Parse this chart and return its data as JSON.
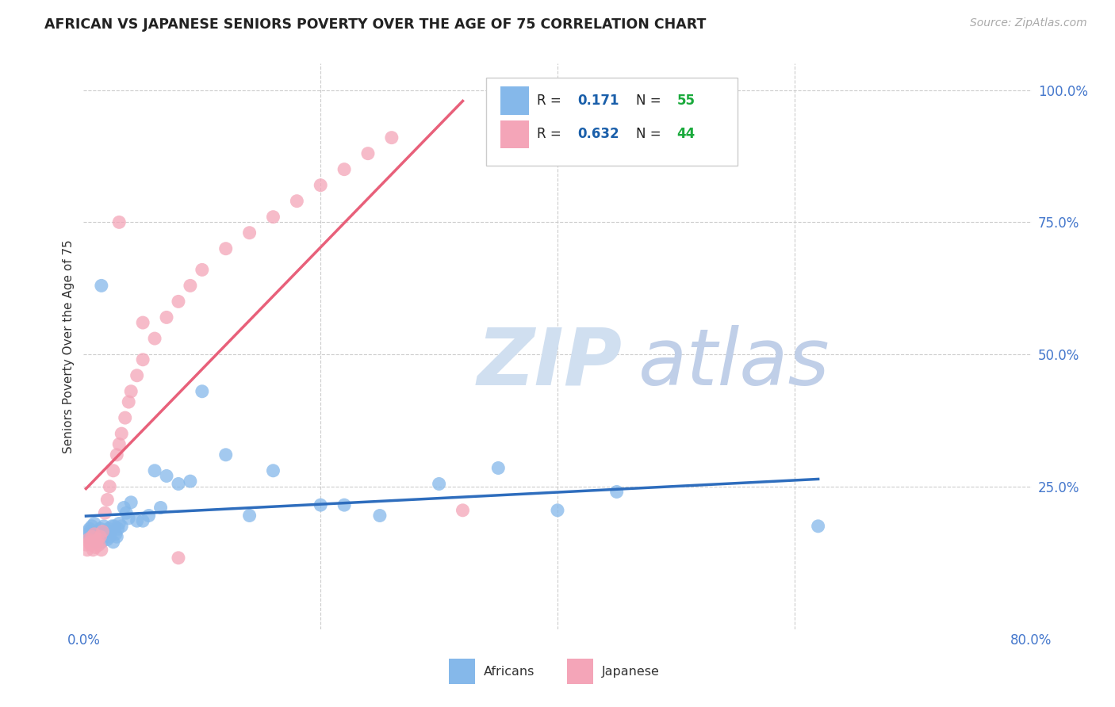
{
  "title": "AFRICAN VS JAPANESE SENIORS POVERTY OVER THE AGE OF 75 CORRELATION CHART",
  "source": "Source: ZipAtlas.com",
  "ylabel": "Seniors Poverty Over the Age of 75",
  "xlim": [
    0.0,
    0.8
  ],
  "ylim": [
    -0.02,
    1.05
  ],
  "african_color": "#85B8EA",
  "japanese_color": "#F4A5B8",
  "african_line_color": "#2E6DBD",
  "japanese_line_color": "#E8607A",
  "african_R": 0.171,
  "african_N": 55,
  "japanese_R": 0.632,
  "japanese_N": 44,
  "legend_text_color": "#222222",
  "legend_val_color": "#1a5faa",
  "legend_n_color": "#1aaa3c",
  "watermark_zip": "ZIP",
  "watermark_atlas": "atlas",
  "watermark_color": "#d0dff0",
  "africans_x": [
    0.002,
    0.003,
    0.004,
    0.005,
    0.006,
    0.007,
    0.008,
    0.009,
    0.01,
    0.011,
    0.012,
    0.013,
    0.014,
    0.015,
    0.016,
    0.017,
    0.018,
    0.019,
    0.02,
    0.021,
    0.022,
    0.023,
    0.024,
    0.025,
    0.026,
    0.027,
    0.028,
    0.029,
    0.03,
    0.032,
    0.034,
    0.036,
    0.038,
    0.04,
    0.045,
    0.05,
    0.055,
    0.06,
    0.065,
    0.07,
    0.08,
    0.09,
    0.1,
    0.12,
    0.14,
    0.16,
    0.2,
    0.22,
    0.25,
    0.3,
    0.35,
    0.4,
    0.45,
    0.62,
    0.015
  ],
  "africans_y": [
    0.155,
    0.16,
    0.165,
    0.17,
    0.155,
    0.175,
    0.15,
    0.18,
    0.145,
    0.16,
    0.165,
    0.155,
    0.17,
    0.145,
    0.155,
    0.175,
    0.16,
    0.165,
    0.15,
    0.17,
    0.155,
    0.165,
    0.175,
    0.145,
    0.175,
    0.16,
    0.155,
    0.17,
    0.18,
    0.175,
    0.21,
    0.2,
    0.19,
    0.22,
    0.185,
    0.185,
    0.195,
    0.28,
    0.21,
    0.27,
    0.255,
    0.26,
    0.43,
    0.31,
    0.195,
    0.28,
    0.215,
    0.215,
    0.195,
    0.255,
    0.285,
    0.205,
    0.24,
    0.175,
    0.63
  ],
  "japanese_x": [
    0.002,
    0.003,
    0.004,
    0.005,
    0.006,
    0.007,
    0.008,
    0.009,
    0.01,
    0.011,
    0.012,
    0.013,
    0.014,
    0.015,
    0.016,
    0.018,
    0.02,
    0.022,
    0.025,
    0.028,
    0.03,
    0.032,
    0.035,
    0.038,
    0.04,
    0.045,
    0.05,
    0.06,
    0.07,
    0.08,
    0.09,
    0.1,
    0.12,
    0.14,
    0.16,
    0.18,
    0.2,
    0.22,
    0.24,
    0.26,
    0.03,
    0.05,
    0.08,
    0.32
  ],
  "japanese_y": [
    0.14,
    0.13,
    0.15,
    0.145,
    0.14,
    0.155,
    0.13,
    0.16,
    0.135,
    0.145,
    0.15,
    0.14,
    0.155,
    0.13,
    0.165,
    0.2,
    0.225,
    0.25,
    0.28,
    0.31,
    0.33,
    0.35,
    0.38,
    0.41,
    0.43,
    0.46,
    0.49,
    0.53,
    0.57,
    0.6,
    0.63,
    0.66,
    0.7,
    0.73,
    0.76,
    0.79,
    0.82,
    0.85,
    0.88,
    0.91,
    0.75,
    0.56,
    0.115,
    0.205
  ]
}
